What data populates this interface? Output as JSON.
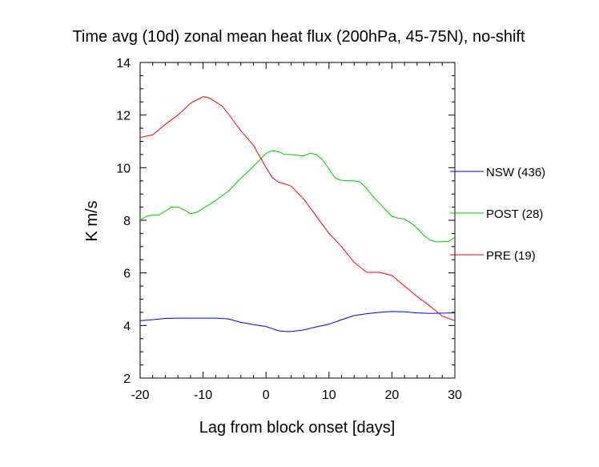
{
  "chart_data": {
    "type": "line",
    "title": "Time avg (10d) zonal mean heat flux (200hPa, 45-75N), no-shift",
    "xlabel": "Lag from block onset [days]",
    "ylabel": "K m/s",
    "xlim": [
      -20,
      30
    ],
    "ylim": [
      2,
      14
    ],
    "x_ticks": [
      -20,
      -10,
      0,
      10,
      20,
      30
    ],
    "y_ticks": [
      2,
      4,
      6,
      8,
      10,
      12,
      14
    ],
    "grid": false,
    "legend_position": "right-outside",
    "series": [
      {
        "name": "NSW (436)",
        "color": "#0000ff",
        "x": [
          -20,
          -18,
          -16,
          -14,
          -12,
          -10,
          -8,
          -6,
          -4,
          -2,
          0,
          1,
          2,
          3,
          4,
          6,
          8,
          10,
          12,
          14,
          16,
          18,
          20,
          22,
          24,
          26,
          28,
          30
        ],
        "y": [
          4.18,
          4.22,
          4.27,
          4.28,
          4.28,
          4.28,
          4.28,
          4.25,
          4.12,
          4.03,
          3.96,
          3.88,
          3.8,
          3.77,
          3.77,
          3.83,
          3.95,
          4.05,
          4.22,
          4.38,
          4.45,
          4.5,
          4.53,
          4.52,
          4.48,
          4.46,
          4.47,
          4.48
        ]
      },
      {
        "name": "POST (28)",
        "color": "#00cc00",
        "x": [
          -20,
          -19,
          -18,
          -17,
          -16,
          -15,
          -14,
          -13,
          -12,
          -11,
          -10,
          -8,
          -6,
          -4,
          -2,
          0,
          1,
          2,
          3,
          4,
          5,
          6,
          7,
          8,
          9,
          10,
          11,
          12,
          13,
          14,
          15,
          16,
          17,
          18,
          19,
          20,
          21,
          22,
          23,
          24,
          25,
          26,
          27,
          28,
          29,
          30
        ],
        "y": [
          8.0,
          8.15,
          8.2,
          8.2,
          8.35,
          8.5,
          8.5,
          8.4,
          8.25,
          8.3,
          8.45,
          8.75,
          9.1,
          9.6,
          10.05,
          10.55,
          10.65,
          10.6,
          10.5,
          10.5,
          10.47,
          10.45,
          10.55,
          10.5,
          10.3,
          9.95,
          9.6,
          9.52,
          9.5,
          9.5,
          9.45,
          9.2,
          8.9,
          8.65,
          8.4,
          8.15,
          8.08,
          8.05,
          7.9,
          7.7,
          7.45,
          7.25,
          7.18,
          7.18,
          7.2,
          7.35
        ]
      },
      {
        "name": "PRE (19)",
        "color": "#ff0000",
        "x": [
          -20,
          -18,
          -16,
          -14,
          -12,
          -10,
          -9,
          -8,
          -7,
          -6,
          -4,
          -2,
          0,
          1,
          2,
          3,
          4,
          6,
          8,
          10,
          12,
          14,
          16,
          18,
          20,
          22,
          24,
          26,
          28,
          30
        ],
        "y": [
          11.15,
          11.25,
          11.65,
          12.0,
          12.45,
          12.7,
          12.65,
          12.5,
          12.35,
          12.05,
          11.4,
          10.85,
          10.0,
          9.62,
          9.45,
          9.38,
          9.3,
          8.8,
          8.15,
          7.5,
          7.0,
          6.4,
          6.02,
          6.02,
          5.9,
          5.5,
          5.1,
          4.75,
          4.35,
          4.18
        ]
      }
    ]
  }
}
